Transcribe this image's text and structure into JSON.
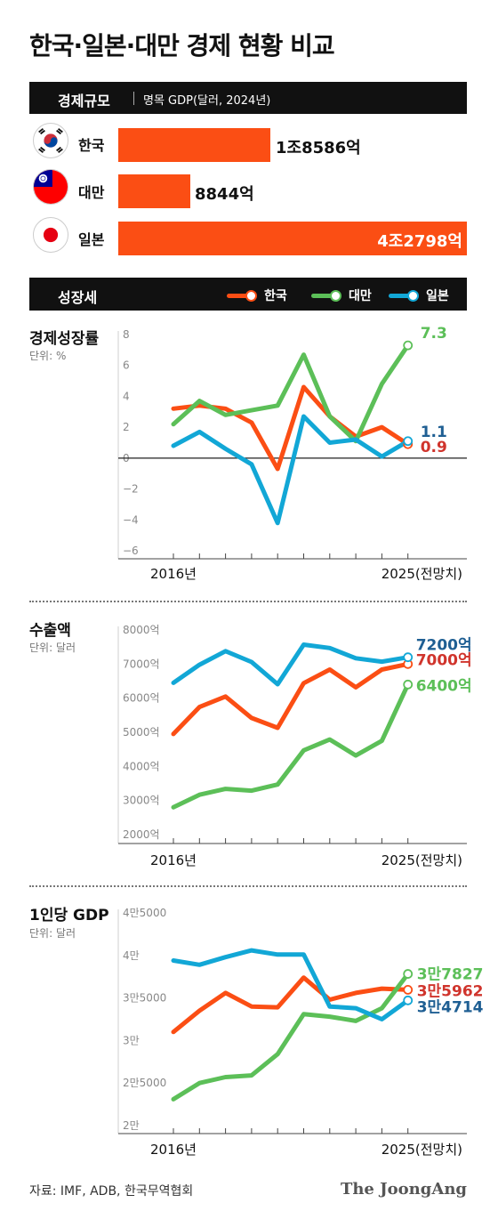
{
  "title": "한국·일본·대만 경제 현황 비교",
  "economy": {
    "header": "경제규모",
    "subtitle": "명목 GDP(달러, 2024년)",
    "rows": [
      {
        "country": "한국",
        "label": "1조8586억",
        "value": 18586
      },
      {
        "country": "대만",
        "label": "8844억",
        "value": 8844
      },
      {
        "country": "일본",
        "label": "4조2798억",
        "value": 42798
      }
    ]
  },
  "growth_header": "성장세",
  "legend": [
    {
      "name": "한국",
      "color": "#fb4e14"
    },
    {
      "name": "대만",
      "color": "#5cbf58"
    },
    {
      "name": "일본",
      "color": "#12a7d6"
    }
  ],
  "colors": {
    "korea": "#fb4e14",
    "taiwan": "#5cbf58",
    "japan": "#12a7d6",
    "korea_label": "#d0342c",
    "japan_label": "#1f5f93",
    "taiwan_label": "#5cbf58"
  },
  "x_labels": {
    "start": "2016년",
    "end": "2025(전망치)"
  },
  "chart_data": [
    {
      "type": "line",
      "title": "경제성장률",
      "unit": "단위: %",
      "x": [
        2016,
        2017,
        2018,
        2019,
        2020,
        2021,
        2022,
        2023,
        2024,
        2025
      ],
      "ylim": [
        -6,
        8
      ],
      "yticks": [
        "8",
        "6",
        "4",
        "2",
        "0",
        "−2",
        "−4",
        "−6"
      ],
      "series": [
        {
          "name": "한국",
          "values": [
            3.2,
            3.4,
            3.2,
            2.3,
            -0.7,
            4.6,
            2.7,
            1.4,
            2.0,
            0.9
          ],
          "end_label": "0.9"
        },
        {
          "name": "대만",
          "values": [
            2.2,
            3.7,
            2.8,
            3.1,
            3.4,
            6.7,
            2.7,
            1.1,
            4.8,
            7.3
          ],
          "end_label": "7.3"
        },
        {
          "name": "일본",
          "values": [
            0.8,
            1.7,
            0.6,
            -0.4,
            -4.2,
            2.7,
            1.0,
            1.2,
            0.1,
            1.1
          ],
          "end_label": "1.1"
        }
      ]
    },
    {
      "type": "line",
      "title": "수출액",
      "unit": "단위: 달러",
      "x": [
        2016,
        2017,
        2018,
        2019,
        2020,
        2021,
        2022,
        2023,
        2024,
        2025
      ],
      "ylim": [
        2000,
        8000
      ],
      "yticks": [
        "8000억",
        "7000억",
        "6000억",
        "5000억",
        "4000억",
        "3000억",
        "2000억"
      ],
      "series": [
        {
          "name": "한국",
          "values": [
            4950,
            5740,
            6050,
            5420,
            5130,
            6440,
            6840,
            6320,
            6840,
            7000
          ],
          "end_label": "7000억"
        },
        {
          "name": "대만",
          "values": [
            2800,
            3170,
            3340,
            3290,
            3470,
            4470,
            4790,
            4320,
            4750,
            6400
          ],
          "end_label": "6400억"
        },
        {
          "name": "일본",
          "values": [
            6450,
            6980,
            7380,
            7060,
            6410,
            7570,
            7470,
            7170,
            7070,
            7200
          ],
          "end_label": "7200억"
        }
      ]
    },
    {
      "type": "line",
      "title": "1인당 GDP",
      "unit": "단위: 달러",
      "x": [
        2016,
        2017,
        2018,
        2019,
        2020,
        2021,
        2022,
        2023,
        2024,
        2025
      ],
      "ylim": [
        20000,
        45000
      ],
      "yticks": [
        "4만5000",
        "4만",
        "3만5000",
        "3만",
        "2만5000",
        "2만"
      ],
      "series": [
        {
          "name": "한국",
          "values": [
            31000,
            33500,
            35600,
            34000,
            33900,
            37400,
            34800,
            35600,
            36100,
            35962
          ],
          "end_label": "3만5962"
        },
        {
          "name": "대만",
          "values": [
            23100,
            25000,
            25700,
            25900,
            28400,
            33100,
            32800,
            32300,
            33800,
            37827
          ],
          "end_label": "3만7827"
        },
        {
          "name": "일본",
          "values": [
            39400,
            38900,
            39800,
            40600,
            40100,
            40100,
            34000,
            33800,
            32500,
            34714
          ],
          "end_label": "3만4714"
        }
      ]
    }
  ],
  "source": "자료: IMF, ADB, 한국무역협회",
  "brand": "The JoongAng"
}
